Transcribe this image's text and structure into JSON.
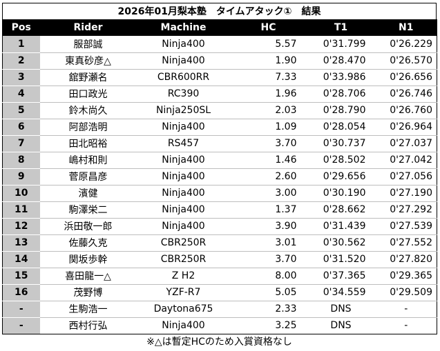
{
  "title": "2026年01月梨本塾　タイムアタック①　結果",
  "headers": [
    "Pos",
    "Rider",
    "Machine",
    "HC",
    "T1",
    "N1"
  ],
  "rows": [
    {
      "pos": "1",
      "rider": "服部誠",
      "machine": "Ninja400",
      "hc": "5.57",
      "t1": "0'31.799",
      "n1": "0'26.229"
    },
    {
      "pos": "2",
      "rider": "東真砂彦△",
      "machine": "Ninja400",
      "hc": "1.90",
      "t1": "0'28.470",
      "n1": "0'26.570"
    },
    {
      "pos": "3",
      "rider": "舘野瀬名",
      "machine": "CBR600RR",
      "hc": "7.33",
      "t1": "0'33.986",
      "n1": "0'26.656"
    },
    {
      "pos": "4",
      "rider": "田口政光",
      "machine": "RC390",
      "hc": "1.96",
      "t1": "0'28.706",
      "n1": "0'26.746"
    },
    {
      "pos": "5",
      "rider": "鈴木尚久",
      "machine": "Ninja250SL",
      "hc": "2.03",
      "t1": "0'28.790",
      "n1": "0'26.760"
    },
    {
      "pos": "6",
      "rider": "阿部浩明",
      "machine": "Ninja400",
      "hc": "1.09",
      "t1": "0'28.054",
      "n1": "0'26.964"
    },
    {
      "pos": "7",
      "rider": "田北昭裕",
      "machine": "RS457",
      "hc": "3.70",
      "t1": "0'30.737",
      "n1": "0'27.037"
    },
    {
      "pos": "8",
      "rider": "嶋村和則",
      "machine": "Ninja400",
      "hc": "1.46",
      "t1": "0'28.502",
      "n1": "0'27.042"
    },
    {
      "pos": "9",
      "rider": "菅原昌彦",
      "machine": "Ninja400",
      "hc": "2.60",
      "t1": "0'29.656",
      "n1": "0'27.056"
    },
    {
      "pos": "10",
      "rider": "濱健",
      "machine": "Ninja400",
      "hc": "3.00",
      "t1": "0'30.190",
      "n1": "0'27.190"
    },
    {
      "pos": "11",
      "rider": "駒澤栄二",
      "machine": "Ninja400",
      "hc": "1.37",
      "t1": "0'28.662",
      "n1": "0'27.292"
    },
    {
      "pos": "12",
      "rider": "浜田敬一郎",
      "machine": "Ninja400",
      "hc": "3.90",
      "t1": "0'31.439",
      "n1": "0'27.539"
    },
    {
      "pos": "13",
      "rider": "佐藤久克",
      "machine": "CBR250R",
      "hc": "3.01",
      "t1": "0'30.562",
      "n1": "0'27.552"
    },
    {
      "pos": "14",
      "rider": "関坂歩幹",
      "machine": "CBR250R",
      "hc": "3.70",
      "t1": "0'31.520",
      "n1": "0'27.820"
    },
    {
      "pos": "15",
      "rider": "喜田龍一△",
      "machine": "Z H2",
      "hc": "8.00",
      "t1": "0'37.365",
      "n1": "0'29.365"
    },
    {
      "pos": "16",
      "rider": "茂野博",
      "machine": "YZF-R7",
      "hc": "5.05",
      "t1": "0'34.559",
      "n1": "0'29.509"
    },
    {
      "pos": "-",
      "rider": "生駒浩一",
      "machine": "Daytona675",
      "hc": "2.33",
      "t1": "DNS",
      "n1": "-"
    },
    {
      "pos": "-",
      "rider": "西村行弘",
      "machine": "Ninja400",
      "hc": "3.25",
      "t1": "DNS",
      "n1": "-"
    }
  ],
  "note": "※△は暫定HCのため入賞資格なし"
}
